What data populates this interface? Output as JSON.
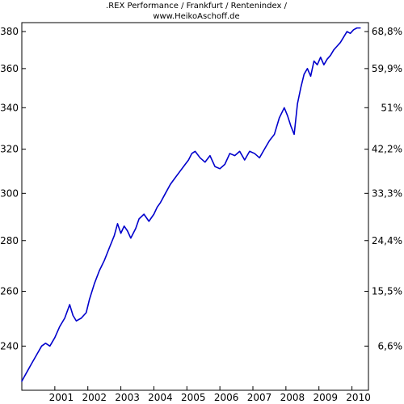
{
  "chart_data": {
    "type": "line",
    "title_lines": [
      ".REX Performance / Frankfurt / Rentenindex /",
      "www.HeikoAschoff.de"
    ],
    "xlabel": "",
    "ylabel": "",
    "x_ticks": [
      "2001",
      "2002",
      "2003",
      "2004",
      "2005",
      "2006",
      "2007",
      "2008",
      "2009",
      "2010"
    ],
    "x_range": [
      2000.0,
      2010.5
    ],
    "y_left_ticks": [
      {
        "value": 240,
        "label": "240"
      },
      {
        "value": 260,
        "label": "260"
      },
      {
        "value": 280,
        "label": "280"
      },
      {
        "value": 300,
        "label": "300"
      },
      {
        "value": 320,
        "label": "320"
      },
      {
        "value": 340,
        "label": "340"
      },
      {
        "value": 360,
        "label": "360"
      },
      {
        "value": 380,
        "label": "380"
      }
    ],
    "y_right_ticks": [
      {
        "value": 240,
        "label": "6,6%"
      },
      {
        "value": 260,
        "label": "15,5%"
      },
      {
        "value": 280,
        "label": "24,4%"
      },
      {
        "value": 300,
        "label": "33,3%"
      },
      {
        "value": 320,
        "label": "42,2%"
      },
      {
        "value": 340,
        "label": "51%"
      },
      {
        "value": 360,
        "label": "59,9%"
      },
      {
        "value": 380,
        "label": "68,8%"
      }
    ],
    "y_scale": "log",
    "y_range": [
      225,
      385
    ],
    "grid": false,
    "line_color": "#0000cc",
    "series": [
      {
        "x": [
          2000.0,
          2000.1,
          2000.2,
          2000.3,
          2000.45,
          2000.6,
          2000.72,
          2000.85,
          2001.0,
          2001.15,
          2001.3,
          2001.45,
          2001.55,
          2001.65,
          2001.8,
          2001.95,
          2002.05,
          2002.2,
          2002.35,
          2002.5,
          2002.65,
          2002.8,
          2002.9,
          2003.0,
          2003.1,
          2003.2,
          2003.3,
          2003.45,
          2003.55,
          2003.7,
          2003.85,
          2004.0,
          2004.1,
          2004.2,
          2004.35,
          2004.5,
          2004.65,
          2004.8,
          2004.95,
          2005.05,
          2005.15,
          2005.25,
          2005.4,
          2005.55,
          2005.7,
          2005.85,
          2006.0,
          2006.15,
          2006.3,
          2006.45,
          2006.6,
          2006.75,
          2006.9,
          2007.05,
          2007.2,
          2007.35,
          2007.5,
          2007.65,
          2007.8,
          2007.95,
          2008.05,
          2008.15,
          2008.25,
          2008.35,
          2008.45,
          2008.55,
          2008.65,
          2008.75,
          2008.85,
          2008.95,
          2009.05,
          2009.15,
          2009.25,
          2009.35,
          2009.45,
          2009.55,
          2009.65,
          2009.75,
          2009.85,
          2009.95,
          2010.05,
          2010.15,
          2010.25
        ],
        "y": [
          228,
          230,
          232,
          234,
          237,
          240,
          241,
          240,
          243,
          247,
          250,
          255,
          251,
          249,
          250,
          252,
          257,
          263,
          268,
          272,
          277,
          282,
          287,
          283,
          286,
          284,
          281,
          285,
          289,
          291,
          288,
          291,
          294,
          296,
          300,
          304,
          307,
          310,
          313,
          315,
          318,
          319,
          316,
          314,
          317,
          312,
          311,
          313,
          318,
          317,
          319,
          315,
          319,
          318,
          316,
          320,
          324,
          327,
          335,
          340,
          336,
          331,
          327,
          342,
          350,
          357,
          360,
          356,
          364,
          362,
          366,
          362,
          365,
          367,
          370,
          372,
          374,
          377,
          380,
          379,
          381,
          382,
          382
        ]
      }
    ]
  }
}
